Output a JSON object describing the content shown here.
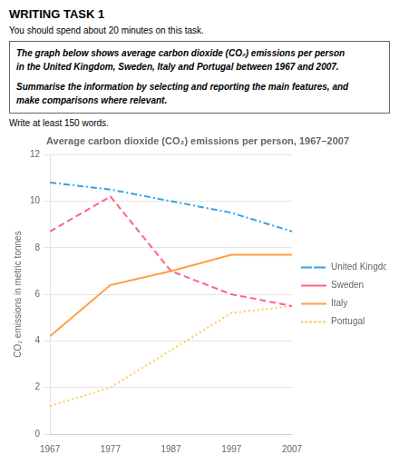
{
  "chart_data": {
    "type": "line",
    "title": "Average carbon dioxide (CO₂) emissions per person, 1967–2007",
    "ylabel": "CO₂ emissions in metric tonnes",
    "annotations": [
      "WRITING TASK 1",
      "You should spend about 20 minutes on this task.",
      "The graph below shows average carbon dioxide (CO₂) emissions per person",
      "in the United Kingdom, Sweden, Italy and Portugal between 1967 and 2007.",
      "Summarise the information by selecting and reporting the main features, and",
      "make comparisons where relevant.",
      "Write at least 150 words."
    ],
    "x": [
      1967,
      1977,
      1987,
      1997,
      2007
    ],
    "series": [
      {
        "name": "United Kingdom",
        "values": [
          10.8,
          10.5,
          10.0,
          9.5,
          8.7
        ],
        "line_style": "dashdot"
      },
      {
        "name": "Sweden",
        "values": [
          8.7,
          10.2,
          7.0,
          6.0,
          5.5
        ],
        "line_style": "dashed"
      },
      {
        "name": "Italy",
        "values": [
          4.2,
          6.4,
          7.0,
          7.7,
          7.7
        ],
        "line_style": "solid"
      },
      {
        "name": "Portugal",
        "values": [
          1.2,
          2.0,
          3.6,
          5.2,
          5.5
        ],
        "line_style": "dotted"
      }
    ],
    "xlim": [
      1967,
      2007
    ],
    "xticks": [
      1967,
      1977,
      1987,
      1997,
      2007
    ],
    "ylim": [
      0,
      12
    ],
    "yticks": [
      0,
      2,
      4,
      6,
      8,
      10,
      12
    ],
    "grid": true,
    "legend": "right"
  }
}
